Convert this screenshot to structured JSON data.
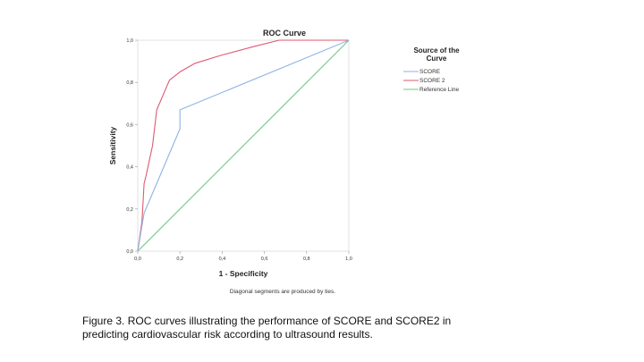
{
  "chart_data": {
    "type": "line",
    "title": "ROC Curve",
    "xlabel": "1 - Specificity",
    "ylabel": "Sensitivity",
    "xlim": [
      0,
      1
    ],
    "ylim": [
      0,
      1
    ],
    "x_ticks": [
      "0,0",
      "0,2",
      "0,4",
      "0,6",
      "0,8",
      "1,0"
    ],
    "y_ticks": [
      "0,0",
      "0,2",
      "0,4",
      "0,6",
      "0,8",
      "1,0"
    ],
    "grid": false,
    "note": "Diagonal segments are produced by ties.",
    "legend": {
      "title_line1": "Source of the",
      "title_line2": "Curve",
      "placement": "right"
    },
    "series": [
      {
        "name": "SCORE",
        "color": "#8fb3e3",
        "points": [
          [
            0,
            0
          ],
          [
            0.02,
            0.12
          ],
          [
            0.03,
            0.18
          ],
          [
            0.2,
            0.58
          ],
          [
            0.2,
            0.67
          ],
          [
            1,
            1
          ]
        ]
      },
      {
        "name": "SCORE 2",
        "color": "#dd5a72",
        "points": [
          [
            0,
            0
          ],
          [
            0.01,
            0.07
          ],
          [
            0.02,
            0.14
          ],
          [
            0.03,
            0.32
          ],
          [
            0.04,
            0.36
          ],
          [
            0.07,
            0.5
          ],
          [
            0.09,
            0.67
          ],
          [
            0.15,
            0.81
          ],
          [
            0.2,
            0.85
          ],
          [
            0.27,
            0.89
          ],
          [
            0.4,
            0.93
          ],
          [
            0.55,
            0.97
          ],
          [
            0.67,
            1
          ],
          [
            1,
            1
          ]
        ]
      },
      {
        "name": "Reference Line",
        "color": "#77c38a",
        "points": [
          [
            0,
            0
          ],
          [
            1,
            1
          ]
        ]
      }
    ]
  },
  "caption": {
    "line1": "Figure 3. ROC curves illustrating the performance of SCORE and SCORE2 in",
    "line2": "predicting cardiovascular risk according to ultrasound results."
  }
}
